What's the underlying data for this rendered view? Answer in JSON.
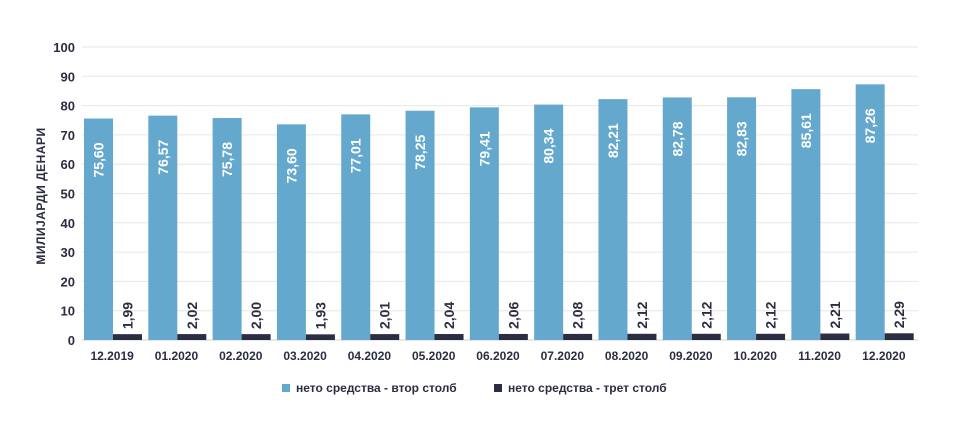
{
  "chart_data": {
    "type": "bar",
    "title": "",
    "xlabel": "",
    "ylabel": "МИЛИЈАРДИ ДЕНАРИ",
    "ylim": [
      0,
      100
    ],
    "yticks": [
      0,
      10,
      20,
      30,
      40,
      50,
      60,
      70,
      80,
      90,
      100
    ],
    "grid": true,
    "legend_position": "bottom",
    "categories": [
      "12.2019",
      "01.2020",
      "02.2020",
      "03.2020",
      "04.2020",
      "05.2020",
      "06.2020",
      "07.2020",
      "08.2020",
      "09.2020",
      "10.2020",
      "11.2020",
      "12.2020"
    ],
    "series": [
      {
        "name": "нето средства - втор столб",
        "color": "#64a9cd",
        "values": [
          75.6,
          76.57,
          75.78,
          73.6,
          77.01,
          78.25,
          79.41,
          80.34,
          82.21,
          82.78,
          82.83,
          85.61,
          87.26
        ],
        "labels": [
          "75,60",
          "76,57",
          "75,78",
          "73,60",
          "77,01",
          "78,25",
          "79,41",
          "80,34",
          "82,21",
          "82,78",
          "82,83",
          "85,61",
          "87,26"
        ]
      },
      {
        "name": "нето средства - трет столб",
        "color": "#2b2d42",
        "values": [
          1.99,
          2.02,
          2.0,
          1.93,
          2.01,
          2.04,
          2.06,
          2.08,
          2.12,
          2.12,
          2.12,
          2.21,
          2.29
        ],
        "labels": [
          "1,99",
          "2,02",
          "2,00",
          "1,93",
          "2,01",
          "2,04",
          "2,06",
          "2,08",
          "2,12",
          "2,12",
          "2,12",
          "2,21",
          "2,29"
        ]
      }
    ]
  }
}
